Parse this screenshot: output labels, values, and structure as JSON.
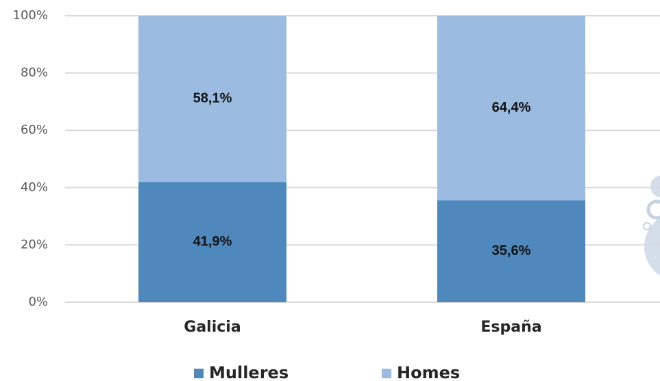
{
  "chart_data": {
    "type": "bar",
    "stacked": true,
    "categories": [
      "Galicia",
      "España"
    ],
    "series": [
      {
        "name": "Mulleres",
        "color": "#4f88bd",
        "values": [
          41.9,
          35.6
        ],
        "value_labels": [
          "41,9%",
          "35,6%"
        ]
      },
      {
        "name": "Homes",
        "color": "#9bbce0",
        "values": [
          58.1,
          64.4
        ],
        "value_labels": [
          "58,1%",
          "64,4%"
        ]
      }
    ],
    "ylim": [
      0,
      100
    ],
    "yticks": [
      {
        "value": 0,
        "label": "0%"
      },
      {
        "value": 20,
        "label": "20%"
      },
      {
        "value": 40,
        "label": "40%"
      },
      {
        "value": 60,
        "label": "60%"
      },
      {
        "value": 80,
        "label": "80%"
      },
      {
        "value": 100,
        "label": "100%"
      }
    ],
    "grid": true,
    "legend": "bottom"
  }
}
